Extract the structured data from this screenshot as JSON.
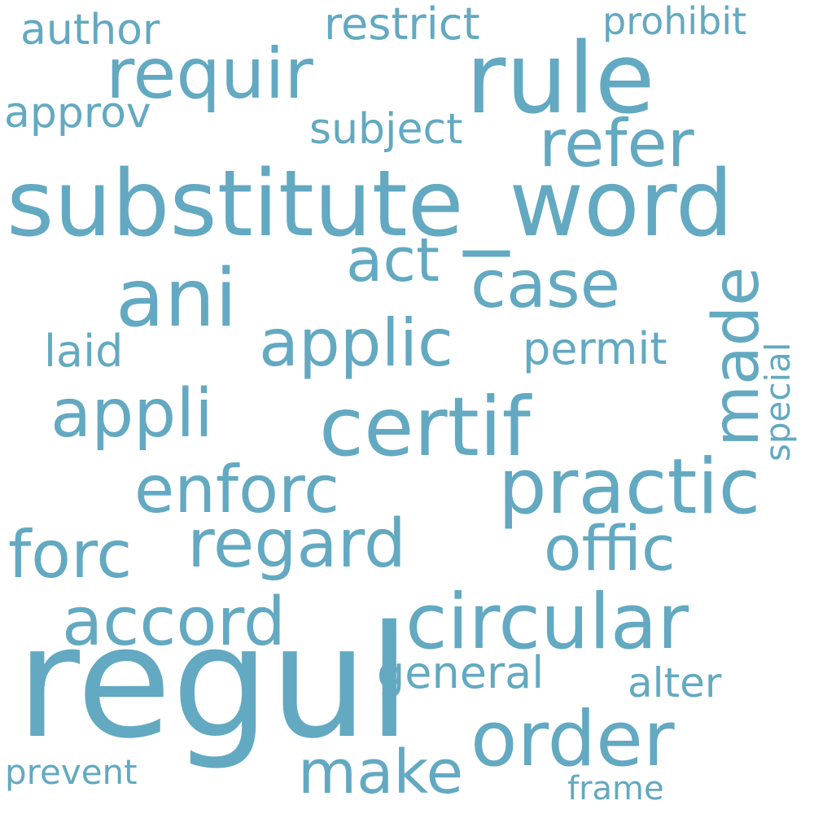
{
  "word_cloud": {
    "color": "#63a9c1",
    "words": [
      {
        "text": "regul"
      },
      {
        "text": "substitute_word"
      },
      {
        "text": "rule"
      },
      {
        "text": "requir"
      },
      {
        "text": "circular"
      },
      {
        "text": "certif"
      },
      {
        "text": "ani"
      },
      {
        "text": "order"
      },
      {
        "text": "practic"
      },
      {
        "text": "applic"
      },
      {
        "text": "regard"
      },
      {
        "text": "appli"
      },
      {
        "text": "enforc"
      },
      {
        "text": "accord"
      },
      {
        "text": "refer"
      },
      {
        "text": "offic"
      },
      {
        "text": "forc"
      },
      {
        "text": "case"
      },
      {
        "text": "made"
      },
      {
        "text": "make"
      },
      {
        "text": "act"
      },
      {
        "text": "general"
      },
      {
        "text": "permit"
      },
      {
        "text": "restrict"
      },
      {
        "text": "author"
      },
      {
        "text": "approv"
      },
      {
        "text": "subject"
      },
      {
        "text": "laid"
      },
      {
        "text": "alter"
      },
      {
        "text": "prohibit"
      },
      {
        "text": "prevent"
      },
      {
        "text": "frame"
      },
      {
        "text": "special"
      }
    ]
  }
}
